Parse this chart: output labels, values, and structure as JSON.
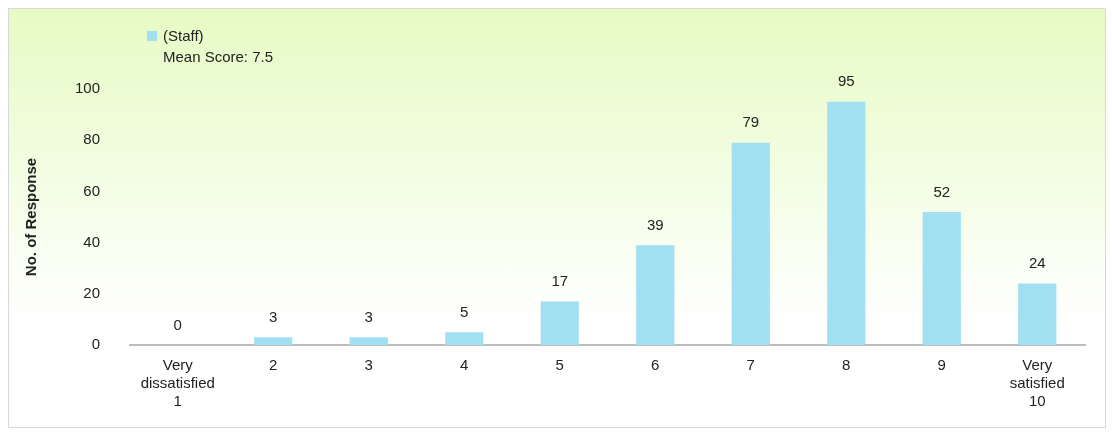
{
  "chart_data": {
    "type": "bar",
    "categories": [
      "Very\ndissatisfied\n1",
      "2",
      "3",
      "4",
      "5",
      "6",
      "7",
      "8",
      "9",
      "Very\nsatisfied\n10"
    ],
    "series": [
      {
        "name": "(Staff)",
        "color": "#a0e0f2",
        "values": [
          0,
          3,
          3,
          5,
          17,
          39,
          79,
          95,
          52,
          24
        ]
      }
    ],
    "ylabel": "No. of Response",
    "ylim": [
      0,
      100
    ],
    "yticks": [
      0,
      20,
      40,
      60,
      80,
      100
    ],
    "grid": false,
    "legend": "top left",
    "data_labels": true,
    "annotations": [
      "Mean Score: 7.5"
    ]
  }
}
